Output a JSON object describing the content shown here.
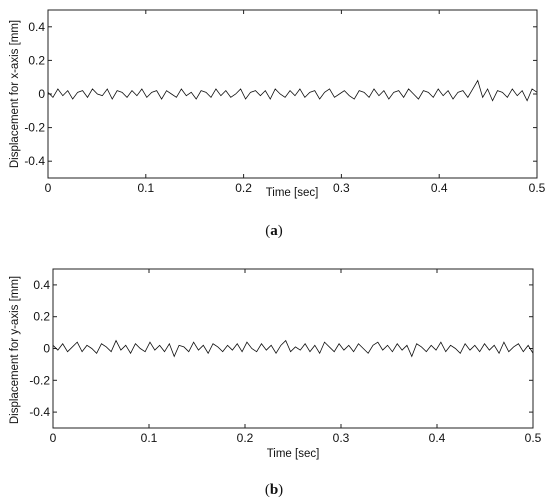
{
  "chart_data": [
    {
      "type": "line",
      "title": "",
      "caption": "(a)",
      "caption_letter": "a",
      "xlabel": "Time [sec]",
      "ylabel": "Displacement for x-axis [mm]",
      "xlim": [
        0,
        0.5
      ],
      "ylim": [
        -0.5,
        0.5
      ],
      "xticks": [
        0,
        0.1,
        0.2,
        0.3,
        0.4,
        0.5
      ],
      "xtick_labels": [
        "0",
        "0.1",
        "0.2",
        "0.3",
        "0.4",
        "0.5"
      ],
      "yticks": [
        0.4,
        0.2,
        0,
        -0.2,
        -0.4
      ],
      "ytick_labels": [
        "0.4",
        "0.2",
        "0",
        "-0.2",
        "-0.4"
      ],
      "grid": false,
      "series": [
        {
          "color": "#111111",
          "x_start": 0,
          "x_end": 0.5,
          "y": [
            0.01,
            -0.02,
            0.03,
            -0.01,
            0.02,
            -0.03,
            0.01,
            0.02,
            -0.02,
            0.03,
            0,
            -0.01,
            0.03,
            -0.03,
            0.02,
            0.01,
            -0.02,
            0.02,
            -0.01,
            0.03,
            -0.02,
            0.01,
            0.02,
            -0.03,
            0.02,
            0,
            -0.02,
            0.03,
            -0.01,
            0.01,
            -0.03,
            0.02,
            0.01,
            -0.02,
            0.03,
            -0.01,
            0.02,
            -0.02,
            0,
            0.03,
            -0.03,
            0.01,
            0.02,
            -0.01,
            0.02,
            -0.03,
            0.03,
            0,
            -0.02,
            0.02,
            -0.01,
            0.03,
            -0.02,
            0.01,
            0.02,
            -0.03,
            0.01,
            0.03,
            -0.02,
            0,
            0.02,
            -0.01,
            -0.03,
            0.02,
            0.01,
            -0.02,
            0.03,
            -0.01,
            0.02,
            -0.03,
            0.01,
            0.02,
            -0.02,
            0.03,
            0,
            -0.03,
            0.02,
            0.01,
            -0.02,
            0.03,
            -0.01,
            0.02,
            -0.03,
            0.01,
            0.02,
            -0.02,
            0.03,
            0.08,
            -0.02,
            0.03,
            -0.04,
            0.02,
            0.01,
            -0.02,
            0.03,
            -0.01,
            0.02,
            -0.04,
            0.03,
            0.01
          ]
        }
      ]
    },
    {
      "type": "line",
      "title": "",
      "caption": "(b)",
      "caption_letter": "b",
      "xlabel": "Time [sec]",
      "ylabel": "Displacement for y-axis [mm]",
      "xlim": [
        0,
        0.5
      ],
      "ylim": [
        -0.5,
        0.5
      ],
      "xticks": [
        0,
        0.1,
        0.2,
        0.3,
        0.4,
        0.5
      ],
      "xtick_labels": [
        "0",
        "0.1",
        "0.2",
        "0.3",
        "0.4",
        "0.5"
      ],
      "yticks": [
        0.4,
        0.2,
        0,
        -0.2,
        -0.4
      ],
      "ytick_labels": [
        "0.4",
        "0.2",
        "0",
        "-0.2",
        "-0.4"
      ],
      "grid": false,
      "series": [
        {
          "color": "#111111",
          "x_start": 0,
          "x_end": 0.5,
          "y": [
            0.02,
            -0.01,
            0.03,
            -0.02,
            0.01,
            0.04,
            -0.02,
            0.02,
            0,
            -0.03,
            0.03,
            0.01,
            -0.02,
            0.05,
            -0.01,
            0.02,
            -0.03,
            0.03,
            0,
            -0.02,
            0.04,
            -0.01,
            0.02,
            -0.02,
            0.03,
            -0.05,
            0.02,
            0.01,
            -0.02,
            0.04,
            -0.01,
            0.02,
            -0.03,
            0.03,
            0.01,
            -0.02,
            0.02,
            -0.01,
            0.03,
            -0.02,
            0.04,
            0,
            -0.02,
            0.03,
            -0.01,
            0.02,
            -0.03,
            0.02,
            0.05,
            -0.02,
            0.01,
            -0.01,
            0.03,
            -0.02,
            0.02,
            -0.03,
            0.04,
            0.01,
            -0.02,
            0.03,
            -0.01,
            0.02,
            -0.02,
            0.03,
            0,
            -0.03,
            0.02,
            0.04,
            -0.01,
            0.02,
            -0.02,
            0.03,
            -0.01,
            0.02,
            -0.05,
            0.03,
            0.01,
            -0.02,
            0.02,
            -0.01,
            0.04,
            -0.02,
            0.02,
            0,
            -0.03,
            0.03,
            -0.01,
            0.02,
            -0.02,
            0.03,
            -0.01,
            0.02,
            -0.03,
            0.04,
            -0.02,
            0.01,
            0.03,
            -0.02,
            0.02,
            -0.03
          ]
        }
      ]
    }
  ]
}
